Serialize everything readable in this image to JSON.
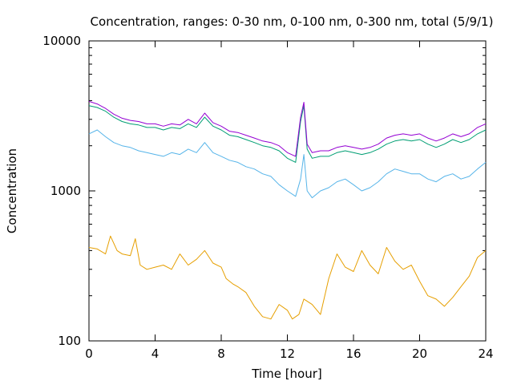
{
  "chart_data": {
    "type": "line",
    "title": "Concentration, ranges: 0-30 nm, 0-100 nm, 0-300 nm, total (5/9/1)",
    "xlabel": "Time [hour]",
    "ylabel": "Concentration",
    "xlim": [
      0,
      24
    ],
    "ylim": [
      100,
      10000
    ],
    "yscale": "log",
    "grid": false,
    "legend": "none",
    "x_ticks": [
      "0",
      "4",
      "8",
      "12",
      "16",
      "20",
      "24"
    ],
    "y_ticks": [
      "100",
      "1000",
      "10000"
    ],
    "series": [
      {
        "color": "#e69f00",
        "x": [
          0,
          0.5,
          1,
          1.3,
          1.7,
          2,
          2.5,
          2.8,
          3.1,
          3.5,
          4,
          4.5,
          5,
          5.5,
          6,
          6.5,
          7,
          7.5,
          8,
          8.3,
          8.7,
          9,
          9.5,
          10,
          10.5,
          11,
          11.5,
          12,
          12.3,
          12.7,
          13,
          13.5,
          14,
          14.5,
          15,
          15.5,
          16,
          16.5,
          17,
          17.5,
          18,
          18.5,
          19,
          19.5,
          20,
          20.5,
          21,
          21.5,
          22,
          22.5,
          23,
          23.5,
          24
        ],
        "values": [
          420,
          410,
          380,
          500,
          400,
          380,
          370,
          480,
          320,
          300,
          310,
          320,
          300,
          380,
          320,
          350,
          400,
          330,
          310,
          260,
          240,
          230,
          210,
          170,
          145,
          140,
          175,
          160,
          140,
          150,
          190,
          175,
          150,
          260,
          380,
          310,
          290,
          400,
          320,
          280,
          420,
          340,
          300,
          320,
          250,
          200,
          190,
          170,
          195,
          230,
          270,
          360,
          400
        ]
      },
      {
        "color": "#56b4e9",
        "x": [
          0,
          0.5,
          1,
          1.5,
          2,
          2.5,
          3,
          3.5,
          4,
          4.5,
          5,
          5.5,
          6,
          6.5,
          7,
          7.5,
          8,
          8.5,
          9,
          9.5,
          10,
          10.5,
          11,
          11.5,
          12,
          12.5,
          12.8,
          13,
          13.2,
          13.5,
          14,
          14.5,
          15,
          15.5,
          16,
          16.5,
          17,
          17.5,
          18,
          18.5,
          19,
          19.5,
          20,
          20.5,
          21,
          21.5,
          22,
          22.5,
          23,
          23.5,
          24
        ],
        "values": [
          2400,
          2550,
          2300,
          2100,
          2000,
          1950,
          1850,
          1800,
          1750,
          1700,
          1800,
          1750,
          1900,
          1800,
          2100,
          1800,
          1700,
          1600,
          1550,
          1450,
          1400,
          1300,
          1250,
          1100,
          1000,
          920,
          1200,
          1750,
          1000,
          900,
          1000,
          1050,
          1150,
          1200,
          1100,
          1000,
          1050,
          1150,
          1300,
          1400,
          1350,
          1300,
          1300,
          1200,
          1150,
          1250,
          1300,
          1200,
          1250,
          1400,
          1550
        ]
      },
      {
        "color": "#009e73",
        "x": [
          0,
          0.5,
          1,
          1.5,
          2,
          2.5,
          3,
          3.5,
          4,
          4.5,
          5,
          5.5,
          6,
          6.5,
          7,
          7.5,
          8,
          8.5,
          9,
          9.5,
          10,
          10.5,
          11,
          11.5,
          12,
          12.5,
          12.8,
          13,
          13.2,
          13.5,
          14,
          14.5,
          15,
          15.5,
          16,
          16.5,
          17,
          17.5,
          18,
          18.5,
          19,
          19.5,
          20,
          20.5,
          21,
          21.5,
          22,
          22.5,
          23,
          23.5,
          24
        ],
        "values": [
          3700,
          3600,
          3400,
          3100,
          2900,
          2800,
          2750,
          2650,
          2650,
          2550,
          2650,
          2600,
          2800,
          2650,
          3100,
          2700,
          2550,
          2350,
          2300,
          2200,
          2100,
          2000,
          1950,
          1850,
          1650,
          1550,
          2900,
          3700,
          1900,
          1650,
          1700,
          1700,
          1800,
          1850,
          1800,
          1750,
          1800,
          1900,
          2050,
          2150,
          2200,
          2150,
          2200,
          2050,
          1950,
          2050,
          2200,
          2100,
          2200,
          2400,
          2550
        ]
      },
      {
        "color": "#9400d3",
        "x": [
          0,
          0.5,
          1,
          1.5,
          2,
          2.5,
          3,
          3.5,
          4,
          4.5,
          5,
          5.5,
          6,
          6.5,
          7,
          7.5,
          8,
          8.5,
          9,
          9.5,
          10,
          10.5,
          11,
          11.5,
          12,
          12.5,
          12.8,
          13,
          13.2,
          13.5,
          14,
          14.5,
          15,
          15.5,
          16,
          16.5,
          17,
          17.5,
          18,
          18.5,
          19,
          19.5,
          20,
          20.5,
          21,
          21.5,
          22,
          22.5,
          23,
          23.5,
          24
        ],
        "values": [
          3950,
          3800,
          3550,
          3250,
          3050,
          2950,
          2900,
          2800,
          2800,
          2700,
          2800,
          2750,
          3000,
          2800,
          3300,
          2850,
          2700,
          2500,
          2450,
          2350,
          2250,
          2150,
          2100,
          2000,
          1800,
          1700,
          3100,
          3900,
          2050,
          1800,
          1850,
          1850,
          1950,
          2000,
          1950,
          1900,
          1950,
          2050,
          2250,
          2350,
          2400,
          2350,
          2400,
          2250,
          2150,
          2250,
          2400,
          2300,
          2400,
          2650,
          2800
        ]
      }
    ]
  }
}
